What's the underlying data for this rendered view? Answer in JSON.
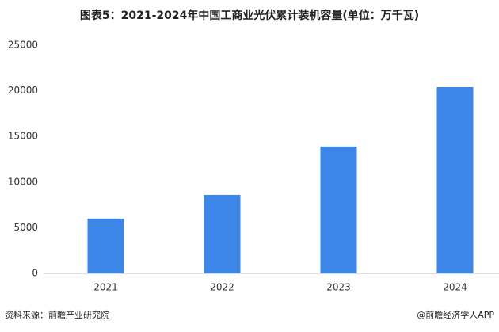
{
  "chart_data": {
    "type": "bar",
    "title": "图表5：2021-2024年中国工商业光伏累计装机容量(单位：万千瓦)",
    "categories": [
      "2021",
      "2022",
      "2023",
      "2024"
    ],
    "values": [
      6000,
      8600,
      13900,
      20400
    ],
    "color": "#3b86e6",
    "ylim": [
      0,
      25000
    ],
    "yticks": [
      0,
      5000,
      10000,
      15000,
      20000,
      25000
    ],
    "grid": false,
    "source": "资料来源：前瞻产业研究院",
    "credit": "@前瞻经济学人APP"
  }
}
